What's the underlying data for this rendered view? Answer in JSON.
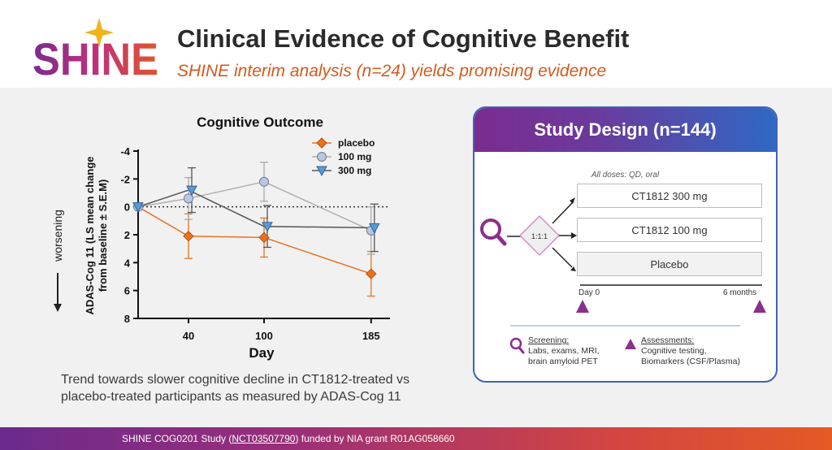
{
  "header": {
    "logo_text": "SHINE",
    "title": "Clinical Evidence of Cognitive Benefit",
    "subtitle": "SHINE interim analysis (n=24) yields promising evidence"
  },
  "colors": {
    "accent_orange": "#d35a1e",
    "placebo": "#e8731f",
    "dose100": "#b9c8df",
    "dose300": "#5b9bd5",
    "card_border": "#3f61b8",
    "purple": "#8a2f8e"
  },
  "chart_data": {
    "type": "line",
    "title": "Cognitive Outcome",
    "xlabel": "Day",
    "ylabel_line1": "ADAS-Cog 11 (LS mean change",
    "ylabel_line2": "from baseline ± S.E.M)",
    "x_ticks": [
      "40",
      "100",
      "185"
    ],
    "y_ticks": [
      "-4",
      "-2",
      "0",
      "2",
      "4",
      "6",
      "8"
    ],
    "ylim": [
      -4,
      8
    ],
    "y_inverted": true,
    "x": [
      0,
      40,
      100,
      185
    ],
    "legend_position": "top-right",
    "side_label": "worsening",
    "series": [
      {
        "name": "placebo",
        "marker": "diamond",
        "color": "#e8731f",
        "values": [
          0,
          2.1,
          2.2,
          4.8
        ],
        "err": [
          0,
          1.6,
          1.4,
          1.6
        ]
      },
      {
        "name": "100 mg",
        "marker": "circle",
        "color": "#b9c8df",
        "values": [
          0,
          -0.6,
          -1.8,
          1.7
        ],
        "err": [
          0,
          1.5,
          1.4,
          1.7
        ]
      },
      {
        "name": "300 mg",
        "marker": "triangle",
        "color": "#5b9bd5",
        "values": [
          0,
          -1.2,
          1.4,
          1.5
        ],
        "err": [
          0,
          1.6,
          1.5,
          1.7
        ]
      }
    ]
  },
  "caption": {
    "line1": "Trend towards slower cognitive decline in CT1812-treated vs",
    "line2": "placebo-treated participants as measured by ADAS-Cog 11"
  },
  "study": {
    "title": "Study Design (n=144)",
    "doses_note": "All doses: QD, oral",
    "ratio": "1:1:1",
    "arms": [
      "CT1812 300 mg",
      "CT1812 100 mg",
      "Placebo"
    ],
    "timeline_start": "Day 0",
    "timeline_end": "6 months",
    "screening_title": "Screening:",
    "screening_line1": "Labs, exams, MRI,",
    "screening_line2": "brain amyloid PET",
    "assess_title": "Assessments:",
    "assess_line1": "Cognitive testing,",
    "assess_line2": "Biomarkers (CSF/Plasma)"
  },
  "footer": {
    "prefix": "SHINE COG0201 Study (",
    "trial_id": "NCT03507790",
    "suffix": ") funded by NIA grant R01AG058660"
  }
}
